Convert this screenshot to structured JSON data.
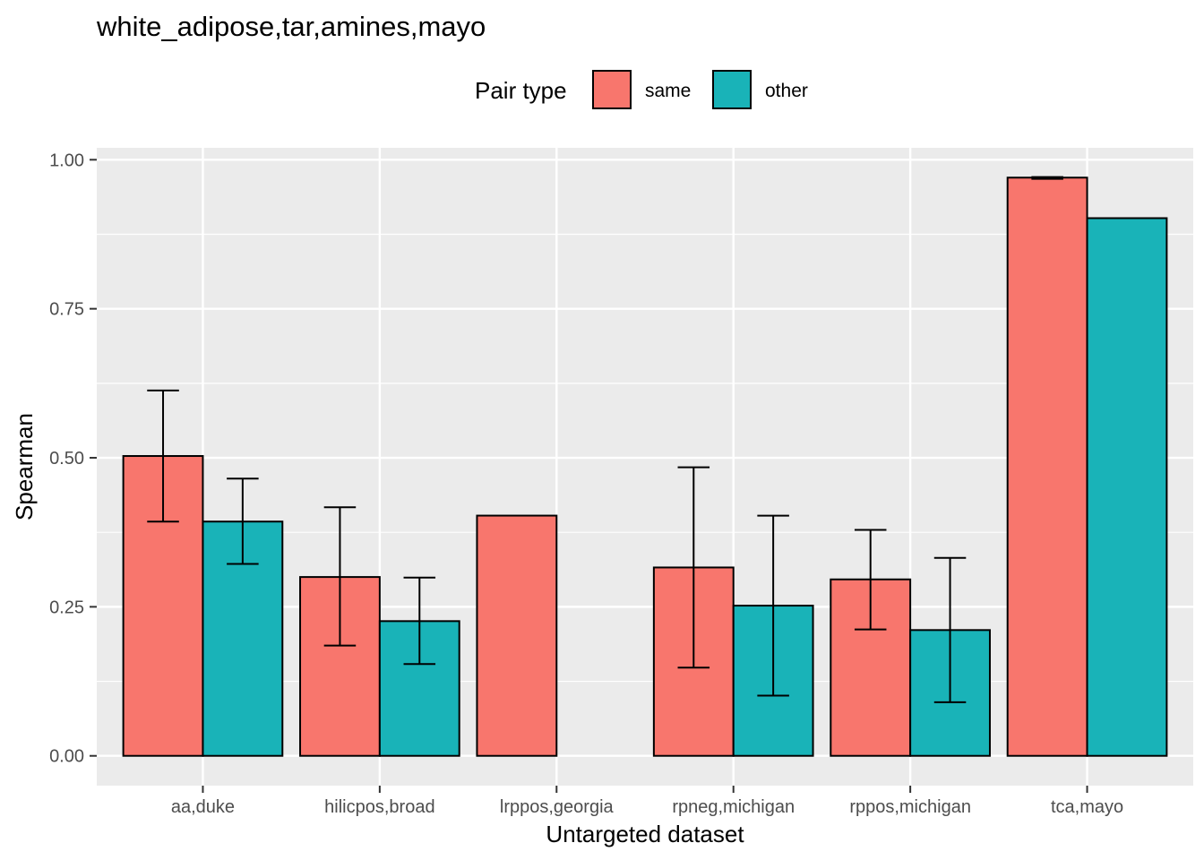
{
  "chart_data": {
    "type": "bar",
    "title": "white_adipose,tar,amines,mayo",
    "xlabel": "Untargeted dataset",
    "ylabel": "Spearman",
    "ylim": [
      -0.05,
      1.02
    ],
    "yticks": [
      "0.00",
      "0.25",
      "0.50",
      "0.75",
      "1.00"
    ],
    "categories": [
      "aa,duke",
      "hilicpos,broad",
      "lrppos,georgia",
      "rpneg,michigan",
      "rppos,michigan",
      "tca,mayo"
    ],
    "legend": {
      "title": "Pair type",
      "position": "top"
    },
    "grid": true,
    "series": [
      {
        "name": "same",
        "color": "#F8766D",
        "values": [
          0.503,
          0.3,
          0.403,
          0.316,
          0.296,
          0.97
        ],
        "error_low": [
          0.393,
          0.185,
          null,
          0.148,
          0.212,
          0.968
        ],
        "error_high": [
          0.613,
          0.417,
          null,
          0.484,
          0.379,
          0.971
        ]
      },
      {
        "name": "other",
        "color": "#19B3B8",
        "values": [
          0.393,
          0.226,
          null,
          0.252,
          0.211,
          0.902
        ],
        "error_low": [
          0.322,
          0.154,
          null,
          0.101,
          0.09,
          null
        ],
        "error_high": [
          0.465,
          0.299,
          null,
          0.403,
          0.332,
          null
        ]
      }
    ]
  }
}
